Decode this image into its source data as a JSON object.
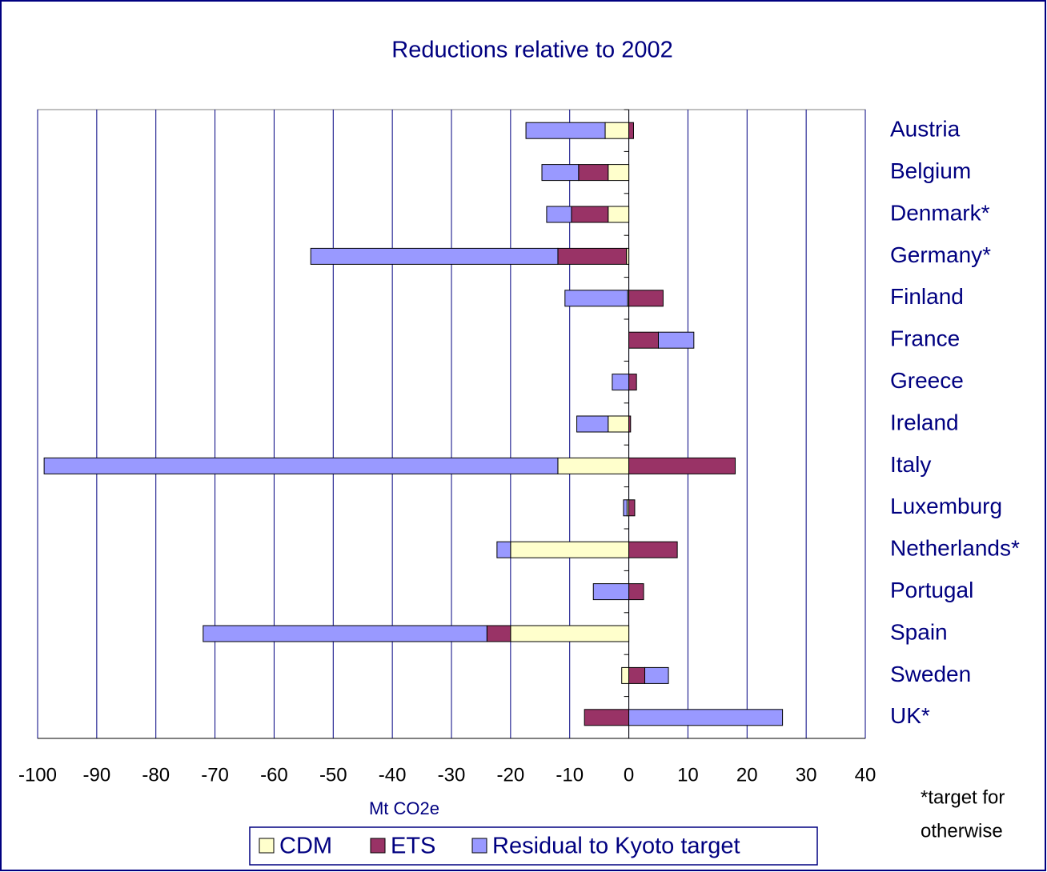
{
  "chart_data": {
    "type": "stacked-barh",
    "title": "Reductions relative to 2002",
    "x_label": "Mt CO2e",
    "categories": [
      "Austria",
      "Belgium",
      "Denmark*",
      "Germany*",
      "Finland",
      "France",
      "Greece",
      "Ireland",
      "Italy",
      "Luxemburg",
      "Netherlands*",
      "Portugal",
      "Spain",
      "Sweden",
      "UK*"
    ],
    "series": [
      {
        "name": "CDM",
        "color": "#ffffcc",
        "values": [
          -4,
          -3.5,
          -3.5,
          -0.4,
          -0.2,
          0,
          0,
          -3.5,
          -12,
          -0.3,
          -20,
          0,
          -20,
          -1.2,
          0
        ]
      },
      {
        "name": "ETS",
        "color": "#993366",
        "values": [
          0.8,
          -5,
          -6.2,
          -11.6,
          5.8,
          5,
          1.3,
          0.3,
          18,
          1,
          8.2,
          2.5,
          -4,
          2.7,
          -7.5
        ]
      },
      {
        "name": "Residual to Kyoto target",
        "color": "#9999ff",
        "values": [
          -13.4,
          -6.2,
          -4.2,
          -41.8,
          -10.6,
          6,
          -2.8,
          -5.3,
          -86.9,
          -0.6,
          -2.3,
          -6,
          -48,
          4,
          26
        ]
      }
    ],
    "xlim": [
      -100,
      40
    ],
    "xticks": [
      -100,
      -90,
      -80,
      -70,
      -60,
      -50,
      -40,
      -30,
      -20,
      -10,
      0,
      10,
      20,
      30,
      40
    ],
    "grid": true,
    "legend": "bottom",
    "footnote": [
      "*target for",
      "otherwise"
    ]
  }
}
